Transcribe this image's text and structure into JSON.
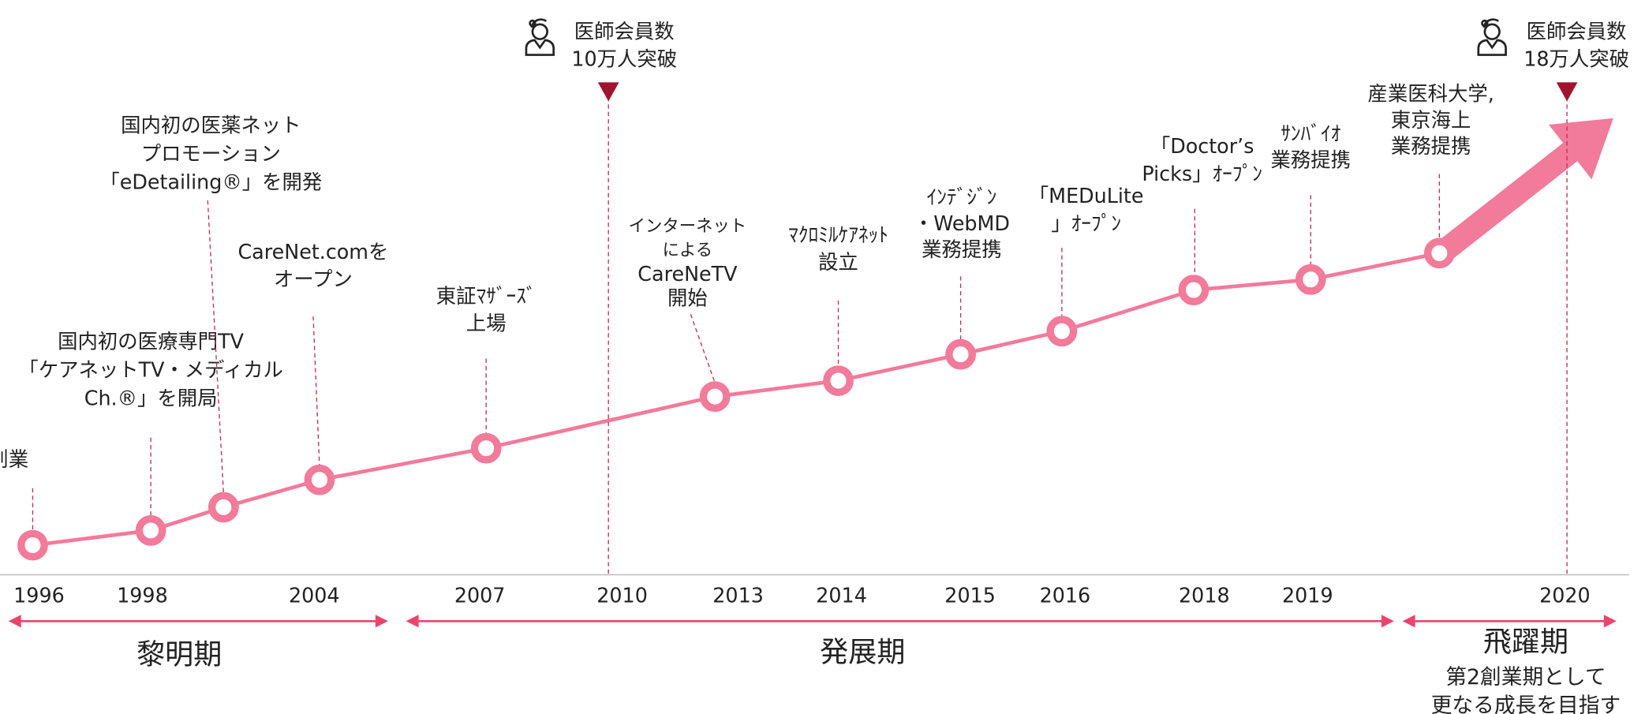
{
  "events": [
    {
      "lines": [
        "創業"
      ]
    },
    {
      "lines": [
        "国内初の医療専門TV",
        "「ケアネットTV・メディカル",
        "Ch.®」を開局"
      ]
    },
    {
      "lines": [
        "国内初の医薬ネット",
        "プロモーション",
        "「eDetailing®」を開発"
      ]
    },
    {
      "lines": [
        "CareNet.comを",
        "オープン"
      ]
    },
    {
      "lines": [
        "東証ﾏｻﾞｰｽﾞ",
        "上場"
      ]
    },
    {
      "lines": [
        "インターネット",
        "による",
        "CareNeTV",
        "開始"
      ]
    },
    {
      "lines": [
        "ﾏｸﾛﾐﾙｹｱﾈｯﾄ",
        "設立"
      ]
    },
    {
      "lines": [
        "ｲﾝﾃﾞｼﾞﾝ",
        "・WebMD",
        "業務提携"
      ]
    },
    {
      "lines": [
        "「MEDuLite",
        "」ｵｰﾌﾟﾝ"
      ]
    },
    {
      "lines": [
        "「Doctor’s",
        "Picks」ｵｰﾌﾟﾝ"
      ]
    },
    {
      "lines": [
        "ｻﾝﾊﾞｲｵ",
        "業務提携"
      ]
    },
    {
      "lines": [
        "産業医科大学,",
        "東京海上",
        "業務提携"
      ]
    }
  ],
  "milestones": [
    {
      "lines": [
        "医師会員数",
        "10万人突破"
      ]
    },
    {
      "lines": [
        "医師会員数",
        "18万人突破"
      ]
    }
  ],
  "years": [
    "1996",
    "1998",
    "2004",
    "2007",
    "2010",
    "2013",
    "2014",
    "2015",
    "2016",
    "2018",
    "2019",
    "2020"
  ],
  "periods": [
    {
      "name": "黎明期"
    },
    {
      "name": "発展期"
    },
    {
      "name": "飛躍期",
      "notes": [
        "第2創業期として",
        "更なる成長を目指す"
      ]
    }
  ]
}
